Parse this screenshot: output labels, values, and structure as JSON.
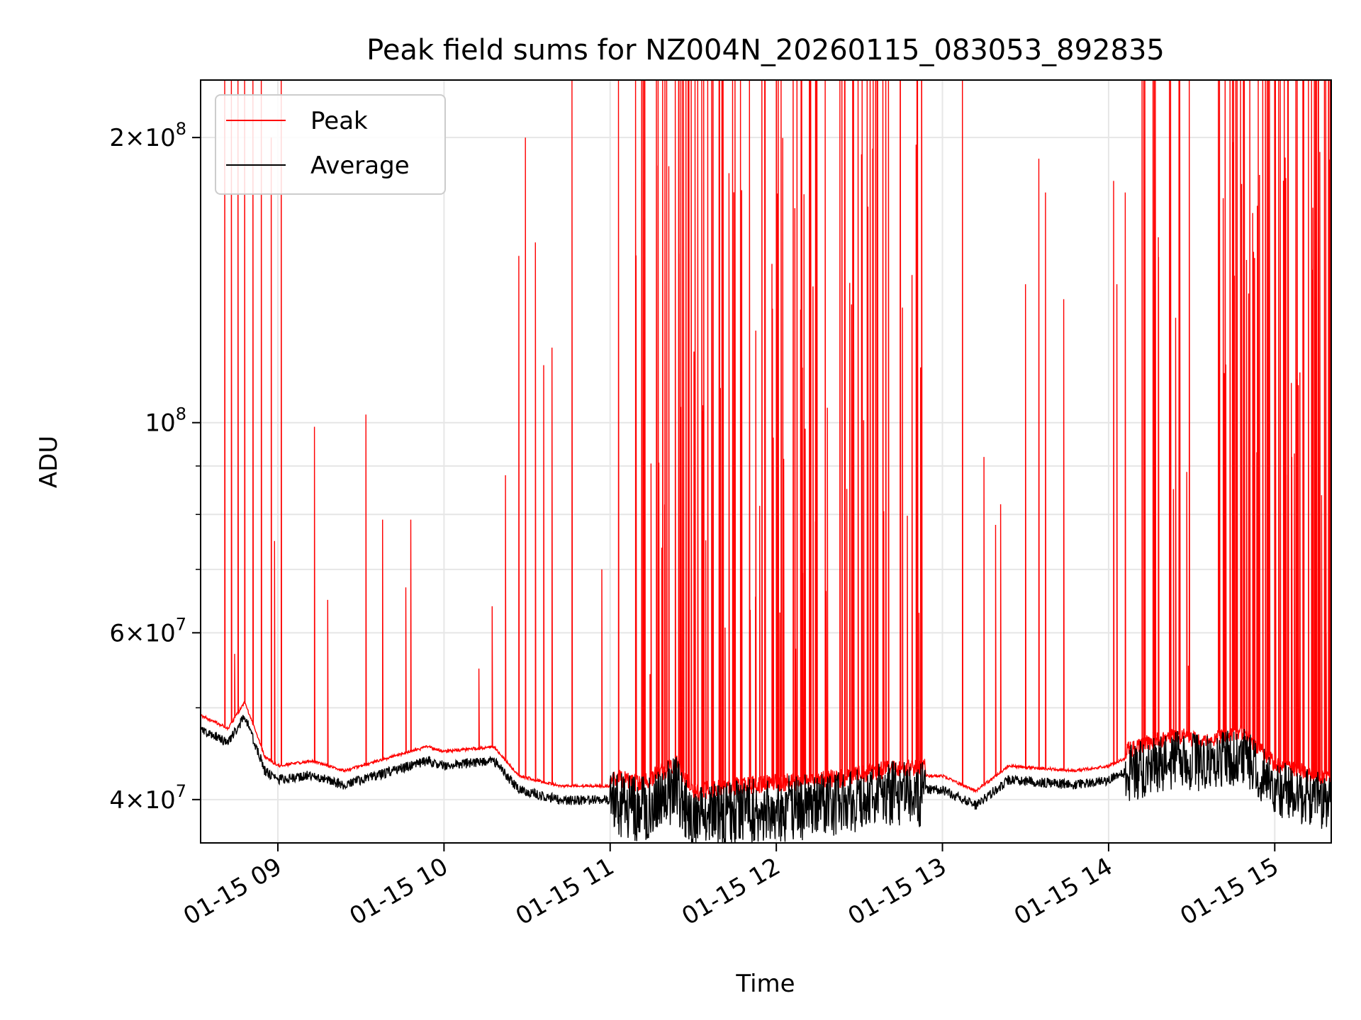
{
  "chart_data": {
    "type": "line",
    "title": "Peak field sums for NZ004N_20260115_083053_892835",
    "xlabel": "Time",
    "ylabel": "ADU",
    "yscale": "log",
    "ylim": [
      36000000,
      230000000
    ],
    "xlim_hours": [
      8.535,
      15.34
    ],
    "grid": true,
    "legend_position": "upper left",
    "x_ticks": [
      {
        "hour": 9,
        "label": "01-15 09"
      },
      {
        "hour": 10,
        "label": "01-15 10"
      },
      {
        "hour": 11,
        "label": "01-15 11"
      },
      {
        "hour": 12,
        "label": "01-15 12"
      },
      {
        "hour": 13,
        "label": "01-15 13"
      },
      {
        "hour": 14,
        "label": "01-15 14"
      },
      {
        "hour": 15,
        "label": "01-15 15"
      }
    ],
    "y_ticks_major": [
      {
        "value": 40000000,
        "mant": "4",
        "exp": "7"
      },
      {
        "value": 60000000,
        "mant": "6",
        "exp": "7"
      },
      {
        "value": 100000000,
        "mant": "",
        "exp": "8"
      },
      {
        "value": 200000000,
        "mant": "2",
        "exp": "8"
      }
    ],
    "y_ticks_minor": [
      50000000,
      70000000,
      80000000,
      90000000
    ],
    "colors": {
      "peak": "#ff0000",
      "average": "#000000"
    },
    "series": [
      {
        "name": "Peak",
        "color": "#ff0000"
      },
      {
        "name": "Average",
        "color": "#000000"
      }
    ],
    "baseline_anchors": {
      "hours": [
        8.535,
        8.7,
        8.8,
        8.85,
        8.92,
        9.0,
        9.2,
        9.4,
        9.6,
        9.9,
        10.0,
        10.3,
        10.45,
        10.7,
        11.0,
        11.2,
        11.4,
        11.5,
        11.6,
        12.0,
        12.4,
        12.7,
        13.0,
        13.2,
        13.4,
        13.8,
        14.0,
        14.2,
        14.4,
        14.6,
        14.8,
        15.0,
        15.34
      ],
      "values": [
        47500000,
        46000000,
        49000000,
        46500000,
        43000000,
        42000000,
        42500000,
        41500000,
        42500000,
        44000000,
        43500000,
        44000000,
        41000000,
        40000000,
        40000000,
        39500000,
        41500000,
        38500000,
        39000000,
        39500000,
        40000000,
        41000000,
        41000000,
        39500000,
        42000000,
        41500000,
        42000000,
        43500000,
        44500000,
        44000000,
        45000000,
        41500000,
        40000000
      ]
    },
    "peak_spikes": [
      {
        "hour": 8.68,
        "value": 230000000
      },
      {
        "hour": 8.72,
        "value": 230000000
      },
      {
        "hour": 8.76,
        "value": 230000000
      },
      {
        "hour": 8.8,
        "value": 230000000
      },
      {
        "hour": 8.85,
        "value": 230000000
      },
      {
        "hour": 8.9,
        "value": 230000000
      },
      {
        "hour": 8.96,
        "value": 200000000
      },
      {
        "hour": 9.02,
        "value": 230000000
      },
      {
        "hour": 8.74,
        "value": 57000000
      },
      {
        "hour": 8.98,
        "value": 75000000
      },
      {
        "hour": 9.22,
        "value": 99000000
      },
      {
        "hour": 9.3,
        "value": 65000000
      },
      {
        "hour": 9.53,
        "value": 102000000
      },
      {
        "hour": 9.63,
        "value": 79000000
      },
      {
        "hour": 9.77,
        "value": 67000000
      },
      {
        "hour": 9.8,
        "value": 79000000
      },
      {
        "hour": 10.21,
        "value": 55000000
      },
      {
        "hour": 10.29,
        "value": 64000000
      },
      {
        "hour": 10.37,
        "value": 88000000
      },
      {
        "hour": 10.45,
        "value": 150000000
      },
      {
        "hour": 10.49,
        "value": 200000000
      },
      {
        "hour": 10.55,
        "value": 155000000
      },
      {
        "hour": 10.6,
        "value": 115000000
      },
      {
        "hour": 10.65,
        "value": 120000000
      },
      {
        "hour": 10.77,
        "value": 230000000
      },
      {
        "hour": 10.95,
        "value": 70000000
      },
      {
        "hour": 11.05,
        "value": 230000000
      },
      {
        "hour": 12.85,
        "value": 230000000
      },
      {
        "hour": 13.12,
        "value": 230000000
      },
      {
        "hour": 13.25,
        "value": 92000000
      },
      {
        "hour": 13.32,
        "value": 78000000
      },
      {
        "hour": 13.35,
        "value": 82000000
      },
      {
        "hour": 13.5,
        "value": 140000000
      },
      {
        "hour": 13.58,
        "value": 190000000
      },
      {
        "hour": 13.62,
        "value": 175000000
      },
      {
        "hour": 13.73,
        "value": 135000000
      },
      {
        "hour": 14.03,
        "value": 180000000
      },
      {
        "hour": 14.05,
        "value": 140000000
      },
      {
        "hour": 14.1,
        "value": 175000000
      }
    ],
    "dense_regions": [
      {
        "start_hour": 11.15,
        "end_hour": 12.88,
        "spike_count": 140
      },
      {
        "start_hour": 14.2,
        "end_hour": 14.5,
        "spike_count": 18
      },
      {
        "start_hour": 14.65,
        "end_hour": 15.34,
        "spike_count": 85
      }
    ]
  }
}
